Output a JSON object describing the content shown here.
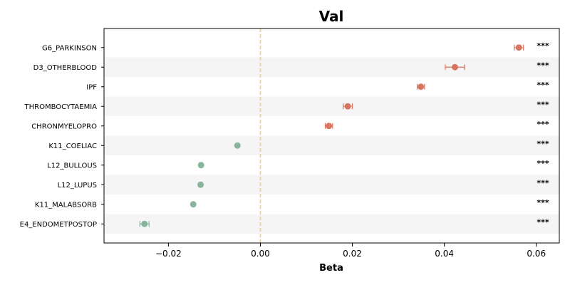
{
  "chart_data": {
    "type": "scatter",
    "title": "Val",
    "xlabel": "Beta",
    "ylabel": "",
    "xlim": [
      -0.034,
      0.065
    ],
    "xticks": [
      -0.02,
      0.0,
      0.02,
      0.04,
      0.06
    ],
    "xtick_labels": [
      "−0.02",
      "0.00",
      "0.02",
      "0.04",
      "0.06"
    ],
    "reference_line": 0.0,
    "grid": false,
    "row_banding": true,
    "colors": {
      "positive": "#d9755e",
      "negative": "#87b59b",
      "reference_line": "#f2c98a",
      "band": "#f5f5f5"
    },
    "points": [
      {
        "label": "G6_PARKINSON",
        "beta": 0.0562,
        "lo": 0.0552,
        "hi": 0.0572,
        "sig": "***"
      },
      {
        "label": "D3_OTHERBLOOD",
        "beta": 0.0423,
        "lo": 0.0402,
        "hi": 0.0444,
        "sig": "***"
      },
      {
        "label": "IPF",
        "beta": 0.0349,
        "lo": 0.0341,
        "hi": 0.0357,
        "sig": "***"
      },
      {
        "label": "THROMBOCYTAEMIA",
        "beta": 0.019,
        "lo": 0.018,
        "hi": 0.02,
        "sig": "***"
      },
      {
        "label": "CHRONMYELOPRO",
        "beta": 0.0149,
        "lo": 0.0141,
        "hi": 0.0157,
        "sig": "***"
      },
      {
        "label": "K11_COELIAC",
        "beta": -0.005,
        "lo": -0.0053,
        "hi": -0.0047,
        "sig": "***"
      },
      {
        "label": "L12_BULLOUS",
        "beta": -0.0129,
        "lo": -0.0132,
        "hi": -0.0126,
        "sig": "***"
      },
      {
        "label": "L12_LUPUS",
        "beta": -0.013,
        "lo": -0.0133,
        "hi": -0.0127,
        "sig": "***"
      },
      {
        "label": "K11_MALABSORB",
        "beta": -0.0146,
        "lo": -0.0149,
        "hi": -0.0143,
        "sig": "***"
      },
      {
        "label": "E4_ENDOMETPOSTOP",
        "beta": -0.0252,
        "lo": -0.0262,
        "hi": -0.0242,
        "sig": "***"
      }
    ]
  }
}
